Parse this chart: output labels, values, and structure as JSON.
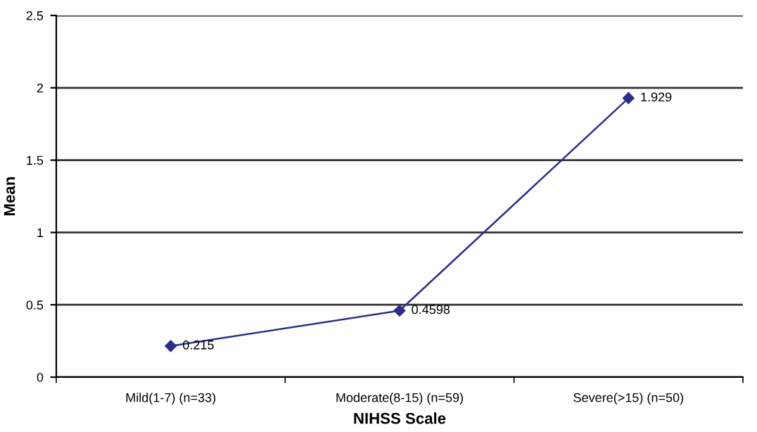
{
  "chart_data": {
    "type": "line",
    "xlabel": "NIHSS Scale",
    "ylabel": "Mean",
    "categories": [
      "Mild(1-7) (n=33)",
      "Moderate(8-15) (n=59)",
      "Severe(>15) (n=50)"
    ],
    "series": [
      {
        "color": "#2b2f8a",
        "values": [
          0.215,
          0.4598,
          1.929
        ]
      }
    ],
    "ylim": [
      0,
      2.5
    ],
    "yticks": [
      0,
      0.5,
      1,
      1.5,
      2,
      2.5
    ],
    "grid": "y",
    "marker": "diamond",
    "line_style": "solid",
    "data_labels": true,
    "legend": false
  }
}
